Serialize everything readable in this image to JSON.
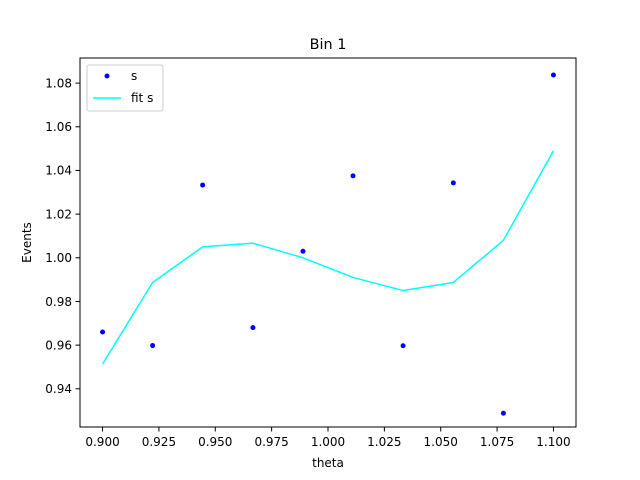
{
  "chart_data": {
    "type": "scatter",
    "title": "Bin 1",
    "xlabel": "theta",
    "ylabel": "Events",
    "xlim": [
      0.89,
      1.11
    ],
    "ylim": [
      0.9225,
      1.0915
    ],
    "xticks": [
      0.9,
      0.925,
      0.95,
      0.975,
      1.0,
      1.025,
      1.05,
      1.075,
      1.1
    ],
    "xtick_labels": [
      "0.900",
      "0.925",
      "0.950",
      "0.975",
      "1.000",
      "1.025",
      "1.050",
      "1.075",
      "1.100"
    ],
    "yticks": [
      0.94,
      0.96,
      0.98,
      1.0,
      1.02,
      1.04,
      1.06,
      1.08
    ],
    "ytick_labels": [
      "0.94",
      "0.96",
      "0.98",
      "1.00",
      "1.02",
      "1.04",
      "1.06",
      "1.08"
    ],
    "grid": false,
    "legend": "top-left",
    "series": [
      {
        "name": "s",
        "kind": "scatter",
        "color": "#0000ff",
        "x": [
          0.9,
          0.9222,
          0.9444,
          0.9667,
          0.9889,
          1.0111,
          1.0333,
          1.0556,
          1.0778,
          1.1
        ],
        "y": [
          0.966,
          0.9598,
          1.0333,
          0.968,
          1.003,
          1.0375,
          0.9597,
          1.0343,
          0.9288,
          1.0837
        ]
      },
      {
        "name": "fit s",
        "kind": "line",
        "color": "#00ffff",
        "x": [
          0.9,
          0.9222,
          0.9444,
          0.9667,
          0.9889,
          1.0111,
          1.0333,
          1.0556,
          1.0778,
          1.1
        ],
        "y": [
          0.9513,
          0.9887,
          1.005,
          1.0067,
          1.0,
          0.991,
          0.985,
          0.9887,
          1.008,
          1.049
        ]
      }
    ]
  }
}
